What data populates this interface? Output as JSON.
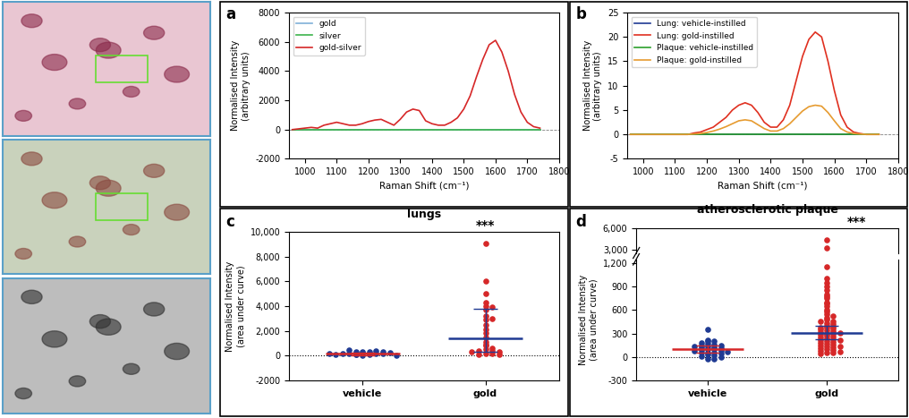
{
  "chart_data": [
    {
      "panel": "a",
      "type": "line",
      "xlabel": "Raman Shift (cm⁻¹)",
      "ylabel": "Normalised Intensity\n(arbitrary units)",
      "x": [
        960,
        980,
        1000,
        1020,
        1040,
        1060,
        1080,
        1100,
        1120,
        1140,
        1160,
        1180,
        1200,
        1220,
        1240,
        1260,
        1280,
        1300,
        1320,
        1340,
        1360,
        1380,
        1400,
        1420,
        1440,
        1460,
        1480,
        1500,
        1520,
        1540,
        1560,
        1580,
        1600,
        1620,
        1640,
        1660,
        1680,
        1700,
        1720,
        1740
      ],
      "xlim": [
        950,
        1800
      ],
      "xticks": [
        1000,
        1100,
        1200,
        1300,
        1400,
        1500,
        1600,
        1700,
        1800
      ],
      "ylim": [
        -2000,
        8000
      ],
      "yticks": [
        -2000,
        0,
        2000,
        4000,
        6000,
        8000
      ],
      "legend": "upper left",
      "series": [
        {
          "name": "gold",
          "color": "#7fb0d8",
          "values": [
            0,
            0,
            0,
            0,
            0,
            0,
            0,
            0,
            0,
            0,
            0,
            0,
            0,
            0,
            0,
            0,
            0,
            0,
            0,
            0,
            0,
            0,
            0,
            0,
            0,
            0,
            0,
            0,
            0,
            0,
            0,
            0,
            0,
            0,
            0,
            0,
            0,
            0,
            0,
            0
          ]
        },
        {
          "name": "silver",
          "color": "#3cb44b",
          "values": [
            0,
            0,
            0,
            0,
            0,
            0,
            0,
            0,
            0,
            0,
            0,
            0,
            0,
            0,
            0,
            0,
            0,
            0,
            0,
            0,
            0,
            0,
            0,
            0,
            0,
            0,
            0,
            0,
            0,
            0,
            0,
            0,
            0,
            0,
            0,
            0,
            0,
            0,
            0,
            0
          ]
        },
        {
          "name": "gold-silver",
          "color": "#d62728",
          "values": [
            0,
            50,
            100,
            150,
            100,
            300,
            400,
            500,
            400,
            300,
            300,
            400,
            550,
            650,
            700,
            500,
            300,
            700,
            1200,
            1400,
            1300,
            600,
            400,
            300,
            300,
            500,
            800,
            1400,
            2300,
            3600,
            4800,
            5800,
            6100,
            5300,
            4000,
            2400,
            1200,
            500,
            200,
            100
          ]
        }
      ]
    },
    {
      "panel": "b",
      "type": "line",
      "xlabel": "Raman Shift (cm⁻¹)",
      "ylabel": "Normalised Intensity\n(arbitrary units)",
      "x": [
        960,
        980,
        1000,
        1020,
        1040,
        1060,
        1080,
        1100,
        1120,
        1140,
        1160,
        1180,
        1200,
        1220,
        1240,
        1260,
        1280,
        1300,
        1320,
        1340,
        1360,
        1380,
        1400,
        1420,
        1440,
        1460,
        1480,
        1500,
        1520,
        1540,
        1560,
        1580,
        1600,
        1620,
        1640,
        1660,
        1680,
        1700,
        1720,
        1740
      ],
      "xlim": [
        950,
        1800
      ],
      "xticks": [
        1000,
        1100,
        1200,
        1300,
        1400,
        1500,
        1600,
        1700,
        1800
      ],
      "ylim": [
        -5,
        25
      ],
      "yticks": [
        -5,
        0,
        5,
        10,
        15,
        20,
        25
      ],
      "legend": "upper left",
      "series": [
        {
          "name": "Lung: vehicle-instilled",
          "color": "#1f3a93",
          "values": [
            0,
            0,
            0,
            0,
            0,
            0,
            0,
            0,
            0,
            0,
            0,
            0,
            0,
            0,
            0,
            0,
            0,
            0,
            0,
            0,
            0,
            0,
            0,
            0,
            0,
            0,
            0,
            0,
            0,
            0,
            0,
            0,
            0,
            0,
            0,
            0,
            0,
            0,
            0,
            0
          ]
        },
        {
          "name": "Lung: gold-instilled",
          "color": "#e03020",
          "values": [
            0,
            0,
            0,
            0,
            0,
            0,
            0,
            0,
            0,
            0,
            0.3,
            0.5,
            1,
            1.5,
            2.5,
            3.5,
            5,
            6,
            6.5,
            6,
            4.5,
            2.5,
            1.5,
            1.5,
            3,
            6,
            11,
            16,
            19.5,
            21,
            20,
            15,
            9,
            4,
            1.5,
            0.5,
            0.2,
            0,
            0,
            0
          ]
        },
        {
          "name": "Plaque: vehicle-instilled",
          "color": "#2ca02c",
          "values": [
            0,
            0,
            0,
            0,
            0,
            0,
            0,
            0,
            0,
            0,
            0,
            0,
            0,
            0,
            0,
            0,
            0,
            0,
            0,
            0,
            0,
            0,
            0,
            0,
            0,
            0,
            0,
            0,
            0,
            0,
            0,
            0,
            0,
            0,
            0,
            0,
            0,
            0,
            0,
            0
          ]
        },
        {
          "name": "Plaque: gold-instilled",
          "color": "#e69b30",
          "values": [
            0,
            0,
            0,
            0,
            0,
            0,
            0,
            0,
            0,
            0,
            0.1,
            0.2,
            0.4,
            0.7,
            1.1,
            1.6,
            2.2,
            2.8,
            3,
            2.8,
            2,
            1.2,
            0.7,
            0.7,
            1.2,
            2.2,
            3.5,
            4.8,
            5.7,
            6,
            5.8,
            4.5,
            2.8,
            1.2,
            0.5,
            0.2,
            0.1,
            0,
            0,
            0
          ]
        }
      ]
    },
    {
      "panel": "c",
      "type": "scatter",
      "title": "lungs",
      "annotation": "***",
      "ylabel": "Normalised Intensity\n(area under curve)",
      "categories": [
        "vehicle",
        "gold"
      ],
      "colors": [
        "#1f3a93",
        "#d62728"
      ],
      "ylim": [
        -2000,
        10000
      ],
      "yticks": [
        -2000,
        0,
        {
          "value": 2000,
          "label": "2,000"
        },
        {
          "value": 4000,
          "label": "4,000"
        },
        {
          "value": 6000,
          "label": "6,000"
        },
        {
          "value": 8000,
          "label": "8,000"
        },
        {
          "value": 10000,
          "label": "10,000"
        }
      ],
      "values": [
        [
          50,
          100,
          100,
          150,
          150,
          200,
          200,
          250,
          300,
          300,
          350,
          400,
          450,
          100,
          50,
          200,
          250,
          150,
          300,
          100
        ],
        [
          9100,
          6000,
          5000,
          4300,
          4000,
          3900,
          3700,
          3200,
          3000,
          2900,
          2500,
          2100,
          1800,
          1500,
          1100,
          900,
          800,
          600,
          500,
          400,
          400,
          300,
          300,
          200,
          200,
          100,
          100
        ]
      ],
      "median": [
        150,
        1400
      ],
      "error_low": [
        50,
        300
      ],
      "error_high": [
        250,
        3800
      ]
    },
    {
      "panel": "d",
      "type": "scatter",
      "title": "atherosclerotic plaque",
      "annotation": "***",
      "ylabel": "Normalised Intensity\n(area under curve)",
      "categories": [
        "vehicle",
        "gold"
      ],
      "colors": [
        "#1f3a93",
        "#d62728"
      ],
      "ylim": [
        -300,
        1250
      ],
      "yticks": [
        -300,
        0,
        300,
        600,
        900,
        {
          "value": 1200,
          "label": "1,200"
        }
      ],
      "break_ylim": [
        2600,
        6000
      ],
      "break_yticks": [
        {
          "value": 3000,
          "label": "3,000"
        },
        {
          "value": 6000,
          "label": "6,000"
        }
      ],
      "values": [
        [
          350,
          220,
          200,
          200,
          180,
          170,
          160,
          150,
          150,
          140,
          130,
          120,
          120,
          110,
          100,
          100,
          90,
          80,
          80,
          70,
          60,
          50,
          50,
          40,
          30,
          20,
          10,
          0,
          -20,
          -30
        ],
        [
          4400,
          3300,
          1150,
          1000,
          950,
          900,
          850,
          800,
          780,
          750,
          700,
          680,
          650,
          600,
          580,
          550,
          520,
          500,
          480,
          460,
          450,
          430,
          420,
          400,
          390,
          380,
          370,
          360,
          350,
          340,
          330,
          320,
          310,
          300,
          290,
          280,
          270,
          260,
          250,
          240,
          230,
          220,
          210,
          200,
          190,
          180,
          170,
          160,
          150,
          140,
          130,
          120,
          110,
          100,
          90,
          80,
          70,
          60,
          50,
          40
        ]
      ],
      "median": [
        100,
        310
      ],
      "error_low": [
        60,
        230
      ],
      "error_high": [
        150,
        400
      ]
    }
  ]
}
